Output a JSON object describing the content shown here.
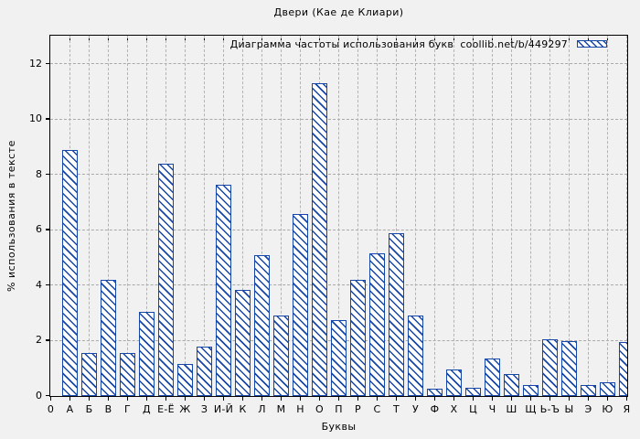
{
  "figure": {
    "title": "Двери (Кае де Клиари)",
    "background": "#f1f1f1"
  },
  "legend": {
    "label": "Диаграмма частоты использования букв  coollib.net/b/449297"
  },
  "axes": {
    "x_label": "Буквы",
    "y_label": "% использования в тексте",
    "origin_label": "0",
    "y_ticks": [
      0,
      2,
      4,
      6,
      8,
      10,
      12
    ]
  },
  "chart_data": {
    "type": "bar",
    "title": "Двери (Кае де Клиари)",
    "legend_entry": "Диаграмма частоты использования букв  coollib.net/b/449297",
    "categories": [
      "А",
      "Б",
      "В",
      "Г",
      "Д",
      "Е-Ё",
      "Ж",
      "З",
      "И-Й",
      "К",
      "Л",
      "М",
      "Н",
      "О",
      "П",
      "Р",
      "С",
      "Т",
      "У",
      "Ф",
      "Х",
      "Ц",
      "Ч",
      "Ш",
      "Щ",
      "Ь-Ъ",
      "Ы",
      "Э",
      "Ю",
      "Я"
    ],
    "values": [
      8.9,
      1.55,
      4.2,
      1.55,
      3.05,
      8.4,
      1.15,
      1.8,
      7.65,
      3.85,
      5.1,
      2.9,
      6.6,
      11.3,
      2.75,
      4.2,
      5.15,
      5.9,
      2.9,
      0.25,
      0.95,
      0.3,
      1.35,
      0.8,
      0.4,
      2.05,
      2.0,
      0.4,
      0.5,
      1.95
    ],
    "xlabel": "Буквы",
    "ylabel": "% использования в тексте",
    "ylim": [
      0,
      13
    ],
    "grid": true,
    "legend_position": "top-inside-right",
    "bar_border_color": "#1647a8",
    "bar_fill_color": "#ffffff",
    "hatch": "diagonal-backslash",
    "plot_background": "#f1f1f1",
    "gridline_color": "#a9a9a9"
  }
}
